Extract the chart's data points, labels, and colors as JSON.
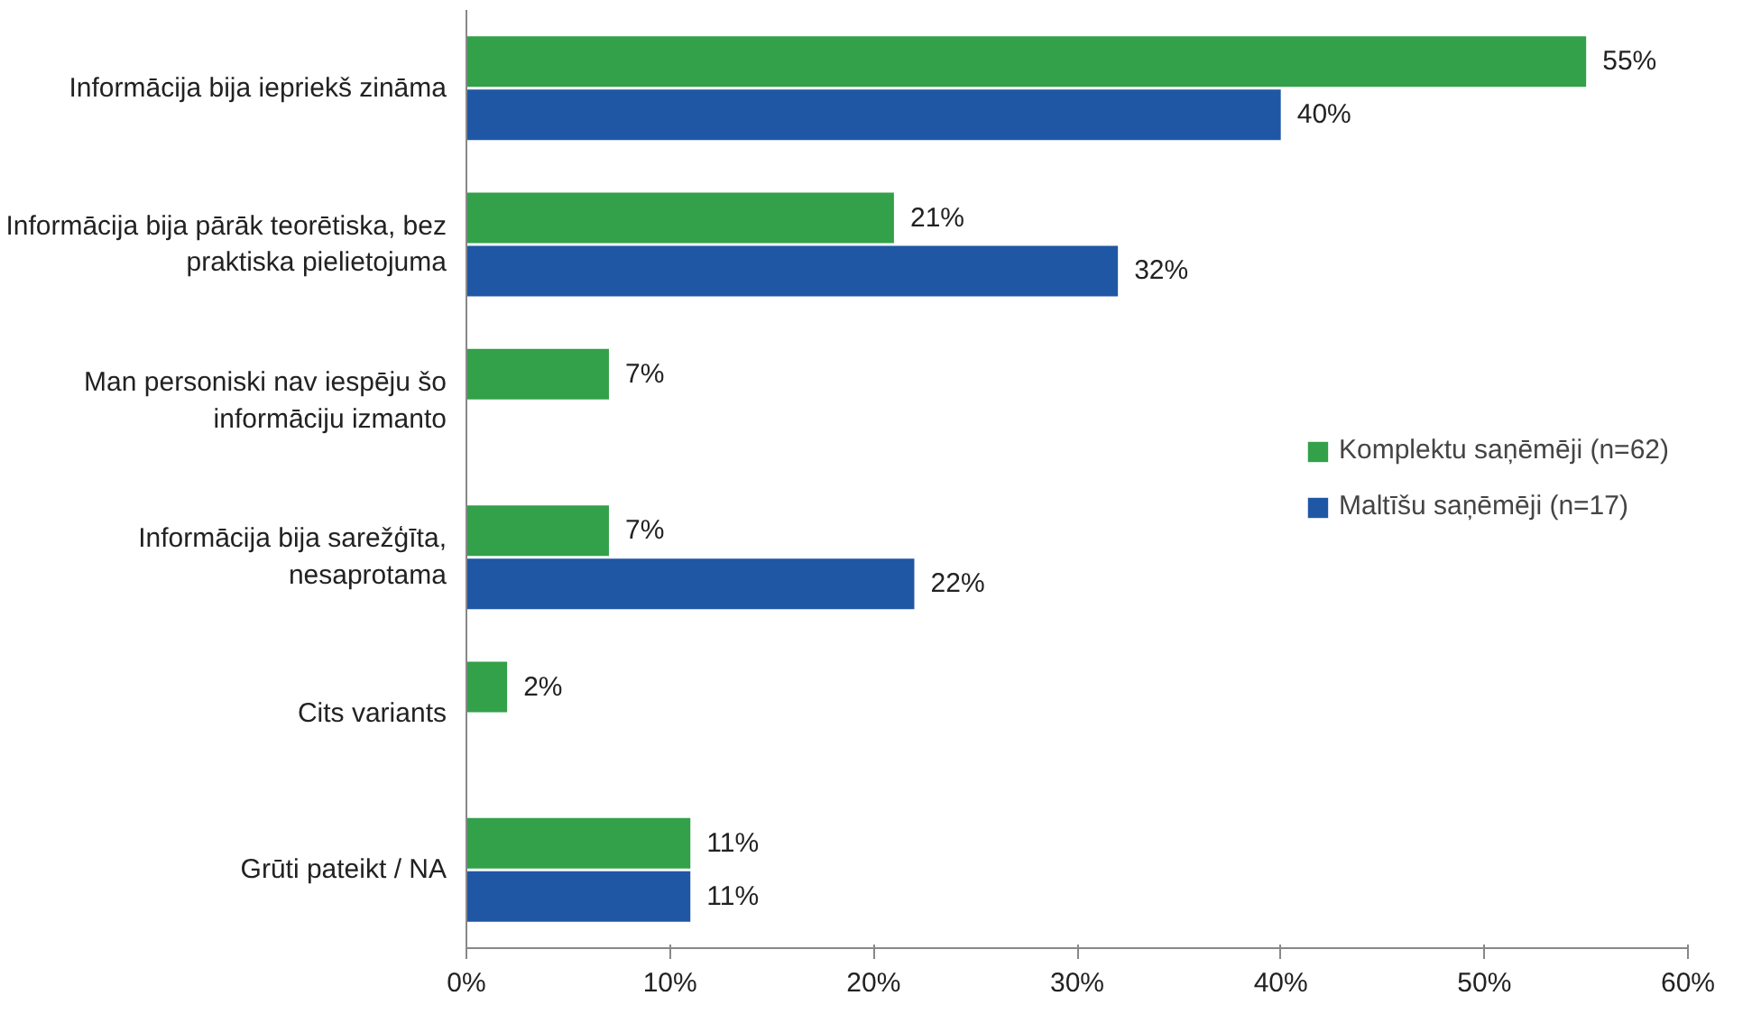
{
  "chart_data": {
    "type": "bar",
    "orientation": "horizontal",
    "categories": [
      "Informācija bija iepriekš zināma",
      "Informācija bija pārāk teorētiska, bez praktiska pielietojuma",
      "Man personiski nav iespēju šo informāciju izmanto",
      "Informācija bija sarežģīta, nesaprotama",
      "Cits variants",
      "Grūti pateikt / NA"
    ],
    "series": [
      {
        "name": "Komplektu saņēmēji (n=62)",
        "color": "#33a04a",
        "values": [
          55,
          21,
          7,
          7,
          2,
          11
        ],
        "value_labels": [
          "55%",
          "21%",
          "7%",
          "7%",
          "2%",
          "11%"
        ]
      },
      {
        "name": "Maltīšu saņēmēji (n=17)",
        "color": "#1f57a5",
        "values": [
          40,
          32,
          null,
          22,
          null,
          11
        ],
        "value_labels": [
          "40%",
          "32%",
          null,
          "22%",
          null,
          "11%"
        ]
      }
    ],
    "xlim": [
      0,
      60
    ],
    "xticks": [
      {
        "value": 0,
        "label": "0%"
      },
      {
        "value": 10,
        "label": "10%"
      },
      {
        "value": 20,
        "label": "20%"
      },
      {
        "value": 30,
        "label": "30%"
      },
      {
        "value": 40,
        "label": "40%"
      },
      {
        "value": 50,
        "label": "50%"
      },
      {
        "value": 60,
        "label": "60%"
      }
    ],
    "grid": false,
    "legend": "right"
  }
}
